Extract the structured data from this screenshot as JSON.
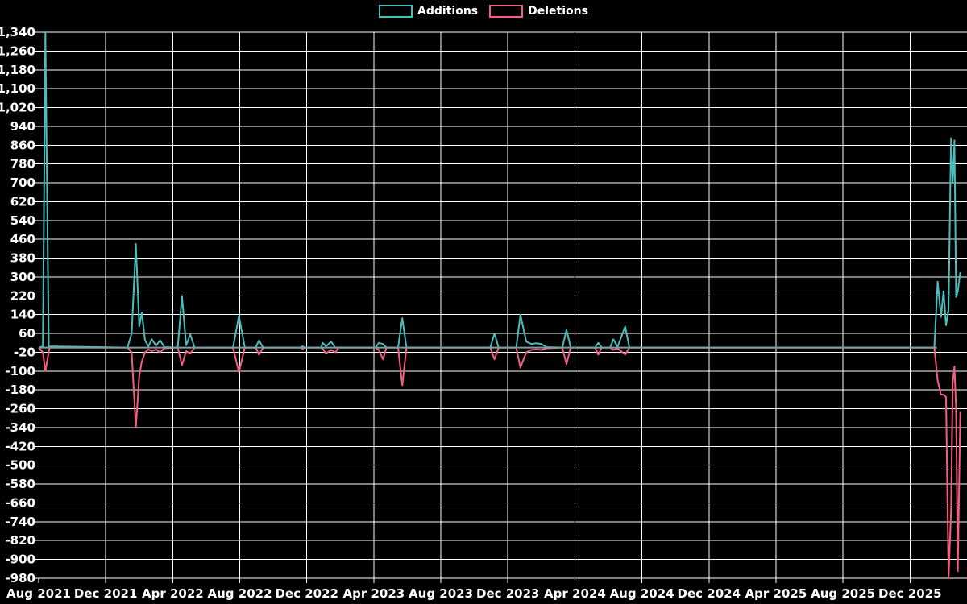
{
  "legend": [
    {
      "label": "Additions",
      "color": "#4cbdbd"
    },
    {
      "label": "Deletions",
      "color": "#f25f7f"
    }
  ],
  "colors": {
    "background": "#000000",
    "grid": "#ffffff",
    "tick_text": "#ffffff",
    "additions": "#4cbdbd",
    "deletions": "#f25f7f",
    "zero_line": "#7d9ea4"
  },
  "chart_data": {
    "type": "line",
    "title": "",
    "xlabel": "",
    "ylabel": "",
    "x_unit": "months since Aug 2021",
    "xlim": [
      0,
      55.4
    ],
    "ylim": [
      -980,
      1340
    ],
    "grid": true,
    "legend_position": "top-center",
    "y_ticks": [
      1340,
      1260,
      1180,
      1100,
      1020,
      940,
      860,
      780,
      700,
      620,
      540,
      460,
      380,
      300,
      220,
      140,
      60,
      -20,
      -100,
      -180,
      -260,
      -340,
      -420,
      -500,
      -580,
      -660,
      -740,
      -820,
      -900,
      -980
    ],
    "y_tick_labels": [
      "1,340",
      "1,260",
      "1,180",
      "1,100",
      "1,020",
      "940",
      "860",
      "780",
      "700",
      "620",
      "540",
      "460",
      "380",
      "300",
      "220",
      "140",
      "60",
      "-20",
      "-100",
      "-180",
      "-260",
      "-340",
      "-420",
      "-500",
      "-580",
      "-660",
      "-740",
      "-820",
      "-900",
      "-980"
    ],
    "x_ticks": [
      0,
      4,
      8,
      12,
      16,
      20,
      24,
      28,
      32,
      36,
      40,
      44,
      48,
      52
    ],
    "x_tick_labels": [
      "Aug 2021",
      "Dec 2021",
      "Apr 2022",
      "Aug 2022",
      "Dec 2022",
      "Apr 2023",
      "Aug 2023",
      "Dec 2023",
      "Apr 2024",
      "Aug 2024",
      "Dec 2024",
      "Apr 2025",
      "Aug 2025",
      "Dec 2025"
    ],
    "zero_line_span": [
      0,
      53.6
    ],
    "series": [
      {
        "name": "Additions",
        "color": "#4cbdbd",
        "points": [
          [
            0,
            0
          ],
          [
            0.25,
            5
          ],
          [
            0.4,
            1340
          ],
          [
            0.6,
            5
          ],
          [
            5.3,
            0
          ],
          [
            5.55,
            60
          ],
          [
            5.8,
            440
          ],
          [
            6.0,
            90
          ],
          [
            6.15,
            150
          ],
          [
            6.35,
            30
          ],
          [
            6.55,
            5
          ],
          [
            6.75,
            35
          ],
          [
            7.0,
            8
          ],
          [
            7.25,
            30
          ],
          [
            7.5,
            2
          ],
          [
            8.3,
            0
          ],
          [
            8.55,
            220
          ],
          [
            8.8,
            10
          ],
          [
            9.05,
            55
          ],
          [
            9.3,
            0
          ],
          [
            11.6,
            0
          ],
          [
            11.95,
            135
          ],
          [
            12.3,
            0
          ],
          [
            12.95,
            0
          ],
          [
            13.15,
            30
          ],
          [
            13.4,
            0
          ],
          [
            15.6,
            0
          ],
          [
            15.75,
            5
          ],
          [
            15.9,
            0
          ],
          [
            16.85,
            0
          ],
          [
            16.95,
            20
          ],
          [
            17.15,
            5
          ],
          [
            17.45,
            25
          ],
          [
            17.7,
            0
          ],
          [
            20.1,
            0
          ],
          [
            20.3,
            20
          ],
          [
            20.55,
            15
          ],
          [
            20.75,
            0
          ],
          [
            21.45,
            0
          ],
          [
            21.7,
            125
          ],
          [
            21.95,
            0
          ],
          [
            26.95,
            0
          ],
          [
            27.2,
            60
          ],
          [
            27.45,
            0
          ],
          [
            28.5,
            0
          ],
          [
            28.75,
            140
          ],
          [
            29.1,
            25
          ],
          [
            29.4,
            15
          ],
          [
            29.7,
            18
          ],
          [
            30.0,
            15
          ],
          [
            30.3,
            2
          ],
          [
            31.25,
            0
          ],
          [
            31.5,
            75
          ],
          [
            31.75,
            0
          ],
          [
            33.2,
            0
          ],
          [
            33.4,
            20
          ],
          [
            33.6,
            0
          ],
          [
            34.1,
            0
          ],
          [
            34.3,
            35
          ],
          [
            34.55,
            3
          ],
          [
            35.0,
            90
          ],
          [
            35.25,
            0
          ],
          [
            53.45,
            0
          ],
          [
            53.65,
            280
          ],
          [
            53.85,
            130
          ],
          [
            54.0,
            240
          ],
          [
            54.15,
            95
          ],
          [
            54.3,
            160
          ],
          [
            54.45,
            890
          ],
          [
            54.55,
            700
          ],
          [
            54.65,
            880
          ],
          [
            54.75,
            215
          ],
          [
            54.85,
            240
          ],
          [
            55.0,
            320
          ]
        ]
      },
      {
        "name": "Deletions",
        "color": "#f25f7f",
        "points": [
          [
            0,
            0
          ],
          [
            0.25,
            -20
          ],
          [
            0.4,
            -100
          ],
          [
            0.65,
            0
          ],
          [
            5.3,
            0
          ],
          [
            5.55,
            -20
          ],
          [
            5.8,
            -340
          ],
          [
            6.0,
            -120
          ],
          [
            6.15,
            -60
          ],
          [
            6.35,
            -20
          ],
          [
            6.55,
            -8
          ],
          [
            6.75,
            -15
          ],
          [
            7.0,
            -8
          ],
          [
            7.25,
            -20
          ],
          [
            7.5,
            -3
          ],
          [
            8.3,
            0
          ],
          [
            8.55,
            -75
          ],
          [
            8.8,
            -15
          ],
          [
            9.05,
            -25
          ],
          [
            9.3,
            0
          ],
          [
            11.6,
            0
          ],
          [
            11.95,
            -105
          ],
          [
            12.3,
            0
          ],
          [
            12.95,
            0
          ],
          [
            13.15,
            -30
          ],
          [
            13.4,
            0
          ],
          [
            15.6,
            0
          ],
          [
            15.75,
            -5
          ],
          [
            15.9,
            0
          ],
          [
            16.85,
            0
          ],
          [
            16.95,
            -5
          ],
          [
            17.15,
            -25
          ],
          [
            17.45,
            -10
          ],
          [
            17.7,
            -20
          ],
          [
            17.9,
            0
          ],
          [
            20.1,
            0
          ],
          [
            20.3,
            -10
          ],
          [
            20.55,
            -50
          ],
          [
            20.75,
            0
          ],
          [
            21.45,
            0
          ],
          [
            21.7,
            -160
          ],
          [
            21.95,
            0
          ],
          [
            26.95,
            0
          ],
          [
            27.2,
            -50
          ],
          [
            27.45,
            0
          ],
          [
            28.5,
            0
          ],
          [
            28.75,
            -85
          ],
          [
            29.1,
            -20
          ],
          [
            29.4,
            -10
          ],
          [
            29.7,
            -8
          ],
          [
            30.0,
            -10
          ],
          [
            30.3,
            -3
          ],
          [
            31.25,
            0
          ],
          [
            31.5,
            -70
          ],
          [
            31.75,
            0
          ],
          [
            33.2,
            0
          ],
          [
            33.4,
            -30
          ],
          [
            33.6,
            0
          ],
          [
            34.1,
            0
          ],
          [
            34.3,
            -10
          ],
          [
            34.55,
            -3
          ],
          [
            35.0,
            -30
          ],
          [
            35.25,
            0
          ],
          [
            53.45,
            0
          ],
          [
            53.65,
            -140
          ],
          [
            53.85,
            -200
          ],
          [
            54.0,
            -200
          ],
          [
            54.15,
            -210
          ],
          [
            54.3,
            -980
          ],
          [
            54.45,
            -700
          ],
          [
            54.55,
            -150
          ],
          [
            54.65,
            -80
          ],
          [
            54.75,
            -265
          ],
          [
            54.85,
            -950
          ],
          [
            55.0,
            -270
          ]
        ]
      }
    ]
  }
}
